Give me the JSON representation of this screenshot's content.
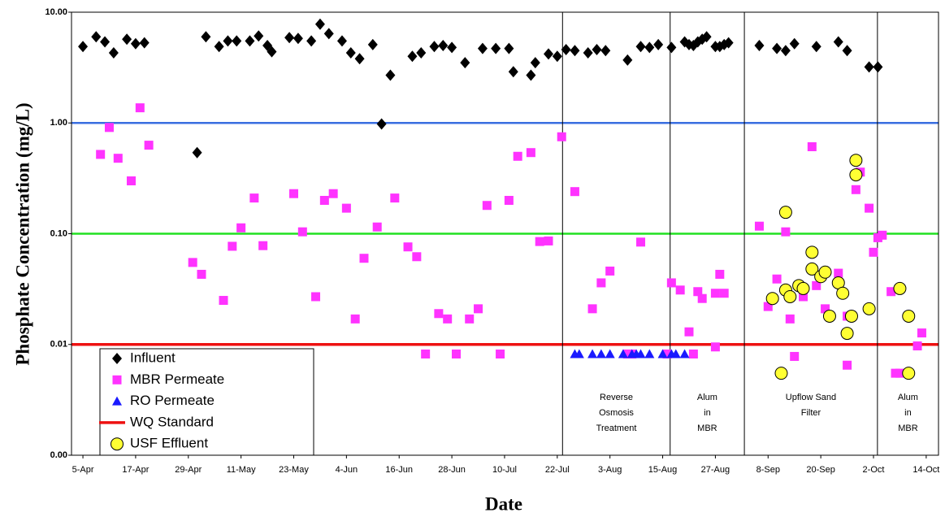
{
  "chart_data": {
    "type": "scatter",
    "xlabel": "Date",
    "ylabel": "Phosphate Concentration (mg/L)",
    "ylog": true,
    "ylim": [
      0.001,
      10
    ],
    "yticks": [
      {
        "value": 10,
        "label": "10.00"
      },
      {
        "value": 1,
        "label": "1.00"
      },
      {
        "value": 0.1,
        "label": "0.10"
      },
      {
        "value": 0.01,
        "label": "0.01"
      },
      {
        "value": 0.001,
        "label": "0.00"
      }
    ],
    "xlim": [
      -2.6,
      194.8
    ],
    "xticks": [
      {
        "value": 0,
        "label": "5-Apr"
      },
      {
        "value": 12,
        "label": "17-Apr"
      },
      {
        "value": 24,
        "label": "29-Apr"
      },
      {
        "value": 36,
        "label": "11-May"
      },
      {
        "value": 48,
        "label": "23-May"
      },
      {
        "value": 60,
        "label": "4-Jun"
      },
      {
        "value": 72,
        "label": "16-Jun"
      },
      {
        "value": 84,
        "label": "28-Jun"
      },
      {
        "value": 96,
        "label": "10-Jul"
      },
      {
        "value": 108,
        "label": "22-Jul"
      },
      {
        "value": 120,
        "label": "3-Aug"
      },
      {
        "value": 132,
        "label": "15-Aug"
      },
      {
        "value": 144,
        "label": "27-Aug"
      },
      {
        "value": 156,
        "label": "8-Sep"
      },
      {
        "value": 168,
        "label": "20-Sep"
      },
      {
        "value": 180,
        "label": "2-Oct"
      },
      {
        "value": 192,
        "label": "14-Oct"
      }
    ],
    "reference_lines": [
      {
        "value": 1,
        "color": "#3a6ee0"
      },
      {
        "value": 0.1,
        "color": "#22e022"
      }
    ],
    "dividers": [
      109.2,
      133.7,
      150.6,
      180.9
    ],
    "annotations": [
      [
        "Reverse",
        "Osmosis",
        "Treatment"
      ],
      [
        "Alum",
        "in",
        "MBR"
      ],
      [
        "Upflow Sand",
        "Filter"
      ],
      [
        "Alum",
        "in",
        "MBR"
      ]
    ],
    "legend": "lower left",
    "series": [
      {
        "name": "Influent",
        "marker": "diamond",
        "color": "#000000",
        "x": [
          0,
          3,
          5,
          7,
          10,
          12,
          14,
          26,
          28,
          31,
          33,
          35,
          38,
          40,
          42,
          43,
          47,
          49,
          52,
          54,
          56,
          59,
          61,
          63,
          66,
          68,
          70,
          75,
          77,
          80,
          82,
          84,
          87,
          91,
          94,
          97,
          98,
          102,
          103,
          106,
          108,
          110,
          112,
          115,
          117,
          119,
          124,
          127,
          129,
          131,
          134,
          137,
          138,
          139,
          140,
          141,
          142,
          144,
          145,
          146,
          147,
          154,
          158,
          160,
          162,
          167,
          172,
          174,
          179,
          181
        ],
        "values": [
          4.9,
          6.0,
          5.4,
          4.3,
          5.7,
          5.2,
          5.3,
          0.54,
          6.0,
          4.9,
          5.5,
          5.5,
          5.5,
          6.1,
          5.0,
          4.4,
          5.9,
          5.8,
          5.5,
          7.8,
          6.4,
          5.5,
          4.3,
          3.8,
          5.1,
          0.98,
          2.7,
          4.0,
          4.3,
          4.9,
          5.0,
          4.8,
          3.5,
          4.7,
          4.7,
          4.7,
          2.9,
          2.7,
          3.5,
          4.2,
          4.0,
          4.6,
          4.5,
          4.3,
          4.6,
          4.5,
          3.7,
          4.9,
          4.8,
          5.1,
          4.8,
          5.4,
          5.1,
          5.0,
          5.4,
          5.7,
          6.0,
          4.9,
          4.9,
          5.1,
          5.3,
          5.0,
          4.7,
          4.5,
          5.2,
          4.9,
          5.4,
          4.5,
          3.2,
          3.2
        ]
      },
      {
        "name": "MBR Permeate",
        "marker": "square",
        "color": "#ff33ff",
        "x": [
          4,
          6,
          8,
          11,
          13,
          15,
          25,
          27,
          32,
          34,
          36,
          39,
          41,
          48,
          50,
          53,
          55,
          57,
          60,
          62,
          64,
          67,
          71,
          74,
          76,
          78,
          81,
          83,
          85,
          88,
          90,
          92,
          95,
          97,
          99,
          102,
          104,
          106,
          109,
          112,
          116,
          118,
          120,
          124,
          125,
          127,
          133,
          134,
          136,
          138,
          139,
          140,
          141,
          144,
          144,
          145,
          146,
          154,
          156,
          158,
          160,
          161,
          162,
          164,
          166,
          167,
          169,
          172,
          174,
          174,
          176,
          177,
          179,
          180,
          181,
          182,
          184,
          185,
          186,
          190,
          191
        ],
        "values": [
          0.52,
          0.91,
          0.48,
          0.3,
          1.37,
          0.63,
          0.055,
          0.043,
          0.025,
          0.077,
          0.113,
          0.21,
          0.078,
          0.23,
          0.104,
          0.027,
          0.2,
          0.23,
          0.17,
          0.017,
          0.06,
          0.115,
          0.21,
          0.076,
          0.062,
          0.0082,
          0.019,
          0.017,
          0.0082,
          0.017,
          0.021,
          0.18,
          0.0082,
          0.2,
          0.5,
          0.54,
          0.085,
          0.086,
          0.75,
          0.24,
          0.021,
          0.036,
          0.046,
          0.0082,
          0.0082,
          0.084,
          0.0082,
          0.036,
          0.031,
          0.013,
          0.0082,
          0.03,
          0.026,
          0.0095,
          0.029,
          0.043,
          0.029,
          0.117,
          0.022,
          0.039,
          0.104,
          0.017,
          0.0078,
          0.027,
          0.61,
          0.034,
          0.021,
          0.044,
          0.0065,
          0.018,
          0.25,
          0.36,
          0.17,
          0.068,
          0.092,
          0.097,
          0.03,
          0.0055,
          0.0055,
          0.0097,
          0.0127
        ]
      },
      {
        "name": "RO Permeate",
        "marker": "triangle",
        "color": "#1a1aff",
        "x": [
          112,
          113,
          116,
          118,
          120,
          123,
          125,
          126,
          127,
          129,
          132,
          134,
          135,
          137
        ],
        "values": [
          0.0082,
          0.0082,
          0.0082,
          0.0082,
          0.0082,
          0.0082,
          0.0082,
          0.0082,
          0.0082,
          0.0082,
          0.0082,
          0.0082,
          0.0082,
          0.0082
        ]
      },
      {
        "name": "WQ Standard",
        "marker": "hline",
        "color": "#ee1111",
        "values": [
          0.01
        ]
      },
      {
        "name": "USF Effluent",
        "marker": "circle",
        "color": "#ffff33",
        "edgecolor": "#000000",
        "x": [
          157,
          159,
          160,
          160,
          161,
          163,
          164,
          166,
          166,
          168,
          169,
          170,
          172,
          173,
          174,
          175,
          176,
          176,
          179,
          186,
          188,
          188
        ],
        "values": [
          0.026,
          0.0055,
          0.156,
          0.031,
          0.027,
          0.034,
          0.032,
          0.068,
          0.048,
          0.041,
          0.045,
          0.018,
          0.036,
          0.029,
          0.0126,
          0.018,
          0.46,
          0.34,
          0.021,
          0.032,
          0.018,
          0.0055
        ]
      }
    ]
  }
}
